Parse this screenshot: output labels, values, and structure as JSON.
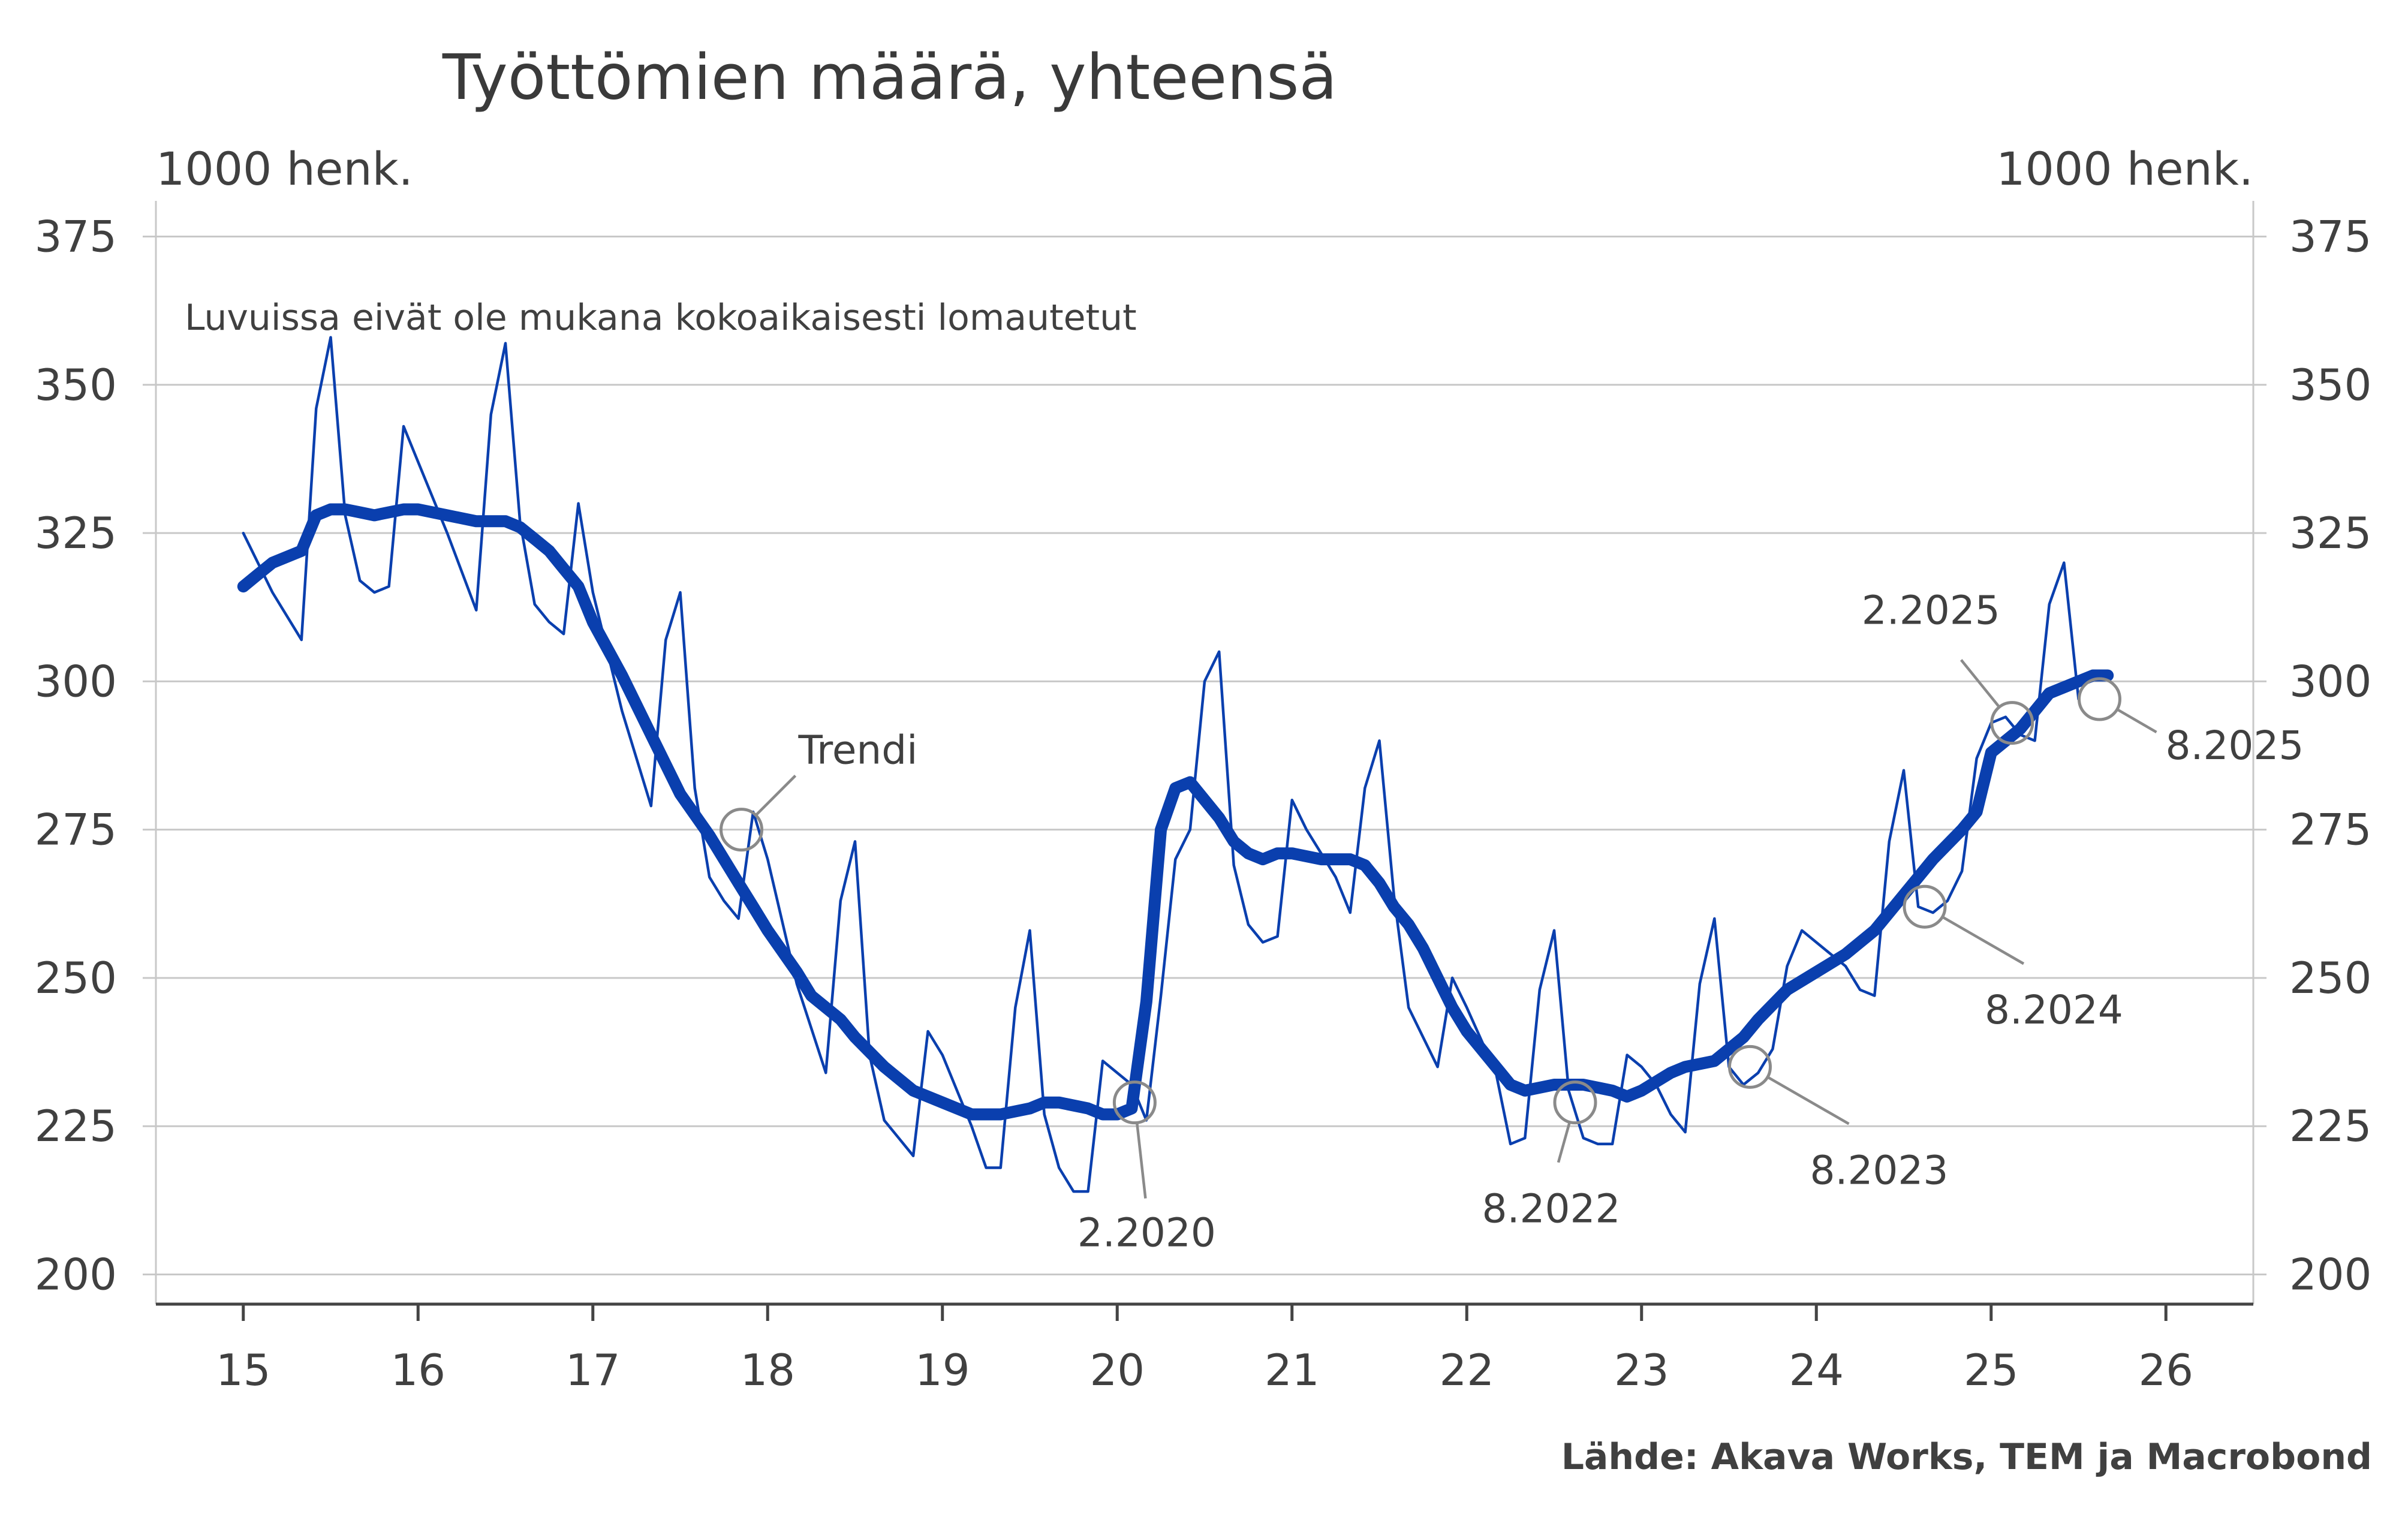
{
  "chart_data": {
    "type": "line",
    "title": "Työttömien määrä, yhteensä",
    "ylabel_left": "1000 henk.",
    "ylabel_right": "1000 henk.",
    "note": "Luvuissa eivät ole mukana kokoaikaisesti lomautetut",
    "source": "Lähde: Akava Works, TEM ja Macrobond",
    "ylim": [
      195,
      380
    ],
    "yticks": [
      200,
      225,
      250,
      275,
      300,
      325,
      350,
      375
    ],
    "xlim": [
      2014.5,
      2026.5
    ],
    "xtick_labels": [
      "15",
      "16",
      "17",
      "18",
      "19",
      "20",
      "21",
      "22",
      "23",
      "24",
      "25",
      "26"
    ],
    "grid": "horizontal",
    "colors": {
      "series": "#0a3fae",
      "grid": "#c8c8c8",
      "axis": "#444444",
      "marker": "#8a8a8a"
    },
    "series": [
      {
        "line": "thin",
        "points": [
          [
            2015.0,
            325
          ],
          [
            2015.167,
            315
          ],
          [
            2015.333,
            307
          ],
          [
            2015.417,
            346
          ],
          [
            2015.5,
            358
          ],
          [
            2015.583,
            328
          ],
          [
            2015.667,
            317
          ],
          [
            2015.75,
            315
          ],
          [
            2015.833,
            316
          ],
          [
            2015.917,
            343
          ],
          [
            2016.0,
            337
          ],
          [
            2016.167,
            325
          ],
          [
            2016.333,
            312
          ],
          [
            2016.417,
            345
          ],
          [
            2016.5,
            357
          ],
          [
            2016.583,
            327
          ],
          [
            2016.667,
            313
          ],
          [
            2016.75,
            310
          ],
          [
            2016.833,
            308
          ],
          [
            2016.917,
            330
          ],
          [
            2017.0,
            315
          ],
          [
            2017.167,
            295
          ],
          [
            2017.333,
            279
          ],
          [
            2017.417,
            307
          ],
          [
            2017.5,
            315
          ],
          [
            2017.583,
            282
          ],
          [
            2017.667,
            267
          ],
          [
            2017.75,
            263
          ],
          [
            2017.833,
            260
          ],
          [
            2017.917,
            278
          ],
          [
            2018.0,
            270
          ],
          [
            2018.167,
            249
          ],
          [
            2018.333,
            234
          ],
          [
            2018.417,
            263
          ],
          [
            2018.5,
            273
          ],
          [
            2018.583,
            237
          ],
          [
            2018.667,
            226
          ],
          [
            2018.75,
            223
          ],
          [
            2018.833,
            220
          ],
          [
            2018.917,
            241
          ],
          [
            2019.0,
            237
          ],
          [
            2019.167,
            225
          ],
          [
            2019.25,
            218
          ],
          [
            2019.333,
            218
          ],
          [
            2019.417,
            245
          ],
          [
            2019.5,
            258
          ],
          [
            2019.583,
            227
          ],
          [
            2019.667,
            218
          ],
          [
            2019.75,
            214
          ],
          [
            2019.833,
            214
          ],
          [
            2019.917,
            236
          ],
          [
            2020.0,
            234
          ],
          [
            2020.083,
            232
          ],
          [
            2020.167,
            226
          ],
          [
            2020.25,
            247
          ],
          [
            2020.333,
            270
          ],
          [
            2020.417,
            275
          ],
          [
            2020.5,
            300
          ],
          [
            2020.583,
            305
          ],
          [
            2020.667,
            269
          ],
          [
            2020.75,
            259
          ],
          [
            2020.833,
            256
          ],
          [
            2020.917,
            257
          ],
          [
            2021.0,
            280
          ],
          [
            2021.083,
            275
          ],
          [
            2021.167,
            271
          ],
          [
            2021.25,
            267
          ],
          [
            2021.333,
            261
          ],
          [
            2021.417,
            282
          ],
          [
            2021.5,
            290
          ],
          [
            2021.583,
            264
          ],
          [
            2021.667,
            245
          ],
          [
            2021.75,
            240
          ],
          [
            2021.833,
            235
          ],
          [
            2021.917,
            250
          ],
          [
            2022.0,
            245
          ],
          [
            2022.167,
            234
          ],
          [
            2022.25,
            222
          ],
          [
            2022.333,
            223
          ],
          [
            2022.417,
            248
          ],
          [
            2022.5,
            258
          ],
          [
            2022.583,
            231
          ],
          [
            2022.667,
            223
          ],
          [
            2022.75,
            222
          ],
          [
            2022.833,
            222
          ],
          [
            2022.917,
            237
          ],
          [
            2023.0,
            235
          ],
          [
            2023.083,
            232
          ],
          [
            2023.167,
            227
          ],
          [
            2023.25,
            224
          ],
          [
            2023.333,
            249
          ],
          [
            2023.417,
            260
          ],
          [
            2023.5,
            235
          ],
          [
            2023.583,
            232
          ],
          [
            2023.667,
            234
          ],
          [
            2023.75,
            238
          ],
          [
            2023.833,
            252
          ],
          [
            2023.917,
            258
          ],
          [
            2024.0,
            256
          ],
          [
            2024.083,
            254
          ],
          [
            2024.167,
            252
          ],
          [
            2024.25,
            248
          ],
          [
            2024.333,
            247
          ],
          [
            2024.417,
            273
          ],
          [
            2024.5,
            285
          ],
          [
            2024.583,
            262
          ],
          [
            2024.667,
            261
          ],
          [
            2024.75,
            263
          ],
          [
            2024.833,
            268
          ],
          [
            2024.917,
            287
          ],
          [
            2025.0,
            293
          ],
          [
            2025.083,
            294
          ],
          [
            2025.167,
            291
          ],
          [
            2025.25,
            290
          ],
          [
            2025.333,
            313
          ],
          [
            2025.417,
            320
          ],
          [
            2025.5,
            297
          ]
        ]
      },
      {
        "name": "Trendi",
        "line": "thick",
        "points": [
          [
            2015.0,
            316
          ],
          [
            2015.083,
            318
          ],
          [
            2015.167,
            320
          ],
          [
            2015.25,
            321
          ],
          [
            2015.333,
            322
          ],
          [
            2015.417,
            328
          ],
          [
            2015.5,
            329
          ],
          [
            2015.583,
            329
          ],
          [
            2015.667,
            328.5
          ],
          [
            2015.75,
            328
          ],
          [
            2015.833,
            328.5
          ],
          [
            2015.917,
            329
          ],
          [
            2016.0,
            329
          ],
          [
            2016.167,
            328
          ],
          [
            2016.333,
            327
          ],
          [
            2016.5,
            327
          ],
          [
            2016.583,
            326
          ],
          [
            2016.667,
            324
          ],
          [
            2016.75,
            322
          ],
          [
            2016.833,
            319
          ],
          [
            2016.917,
            316
          ],
          [
            2017.0,
            310
          ],
          [
            2017.167,
            301
          ],
          [
            2017.333,
            291
          ],
          [
            2017.5,
            281
          ],
          [
            2017.667,
            274
          ],
          [
            2017.75,
            270
          ],
          [
            2017.833,
            266
          ],
          [
            2017.917,
            262
          ],
          [
            2018.0,
            258
          ],
          [
            2018.167,
            251
          ],
          [
            2018.25,
            247
          ],
          [
            2018.417,
            243
          ],
          [
            2018.5,
            240
          ],
          [
            2018.667,
            235
          ],
          [
            2018.833,
            231
          ],
          [
            2019.0,
            229
          ],
          [
            2019.167,
            227
          ],
          [
            2019.333,
            227
          ],
          [
            2019.5,
            228
          ],
          [
            2019.583,
            229
          ],
          [
            2019.667,
            229
          ],
          [
            2019.833,
            228
          ],
          [
            2019.917,
            227
          ],
          [
            2020.0,
            227
          ],
          [
            2020.083,
            228
          ],
          [
            2020.167,
            246
          ],
          [
            2020.25,
            275
          ],
          [
            2020.333,
            282
          ],
          [
            2020.417,
            283
          ],
          [
            2020.5,
            280
          ],
          [
            2020.583,
            277
          ],
          [
            2020.667,
            273
          ],
          [
            2020.75,
            271
          ],
          [
            2020.833,
            270
          ],
          [
            2020.917,
            271
          ],
          [
            2021.0,
            271
          ],
          [
            2021.167,
            270
          ],
          [
            2021.333,
            270
          ],
          [
            2021.417,
            269
          ],
          [
            2021.5,
            266
          ],
          [
            2021.583,
            262
          ],
          [
            2021.667,
            259
          ],
          [
            2021.75,
            255
          ],
          [
            2021.833,
            250
          ],
          [
            2021.917,
            245
          ],
          [
            2022.0,
            241
          ],
          [
            2022.167,
            235
          ],
          [
            2022.25,
            232
          ],
          [
            2022.333,
            231
          ],
          [
            2022.5,
            232
          ],
          [
            2022.667,
            232
          ],
          [
            2022.833,
            231
          ],
          [
            2022.917,
            230
          ],
          [
            2023.0,
            231
          ],
          [
            2023.167,
            234
          ],
          [
            2023.25,
            235
          ],
          [
            2023.417,
            236
          ],
          [
            2023.5,
            238
          ],
          [
            2023.583,
            240
          ],
          [
            2023.667,
            243
          ],
          [
            2023.833,
            248
          ],
          [
            2024.0,
            251
          ],
          [
            2024.167,
            254
          ],
          [
            2024.333,
            258
          ],
          [
            2024.5,
            264
          ],
          [
            2024.667,
            270
          ],
          [
            2024.833,
            275
          ],
          [
            2024.917,
            278
          ],
          [
            2025.0,
            288
          ],
          [
            2025.167,
            292
          ],
          [
            2025.25,
            295
          ],
          [
            2025.333,
            298
          ],
          [
            2025.417,
            299
          ],
          [
            2025.583,
            301
          ],
          [
            2025.667,
            301
          ]
        ]
      }
    ],
    "annotations": [
      {
        "label": "Trendi",
        "point": [
          2017.85,
          275
        ],
        "anchor": "label-above-right"
      },
      {
        "label": "2.2020",
        "point": [
          2020.1,
          229
        ],
        "anchor": "label-below"
      },
      {
        "label": "8.2022",
        "point": [
          2022.62,
          229
        ],
        "anchor": "label-below-left"
      },
      {
        "label": "8.2023",
        "point": [
          2023.62,
          235
        ],
        "anchor": "label-below-right"
      },
      {
        "label": "8.2024",
        "point": [
          2024.62,
          262
        ],
        "anchor": "label-below-right"
      },
      {
        "label": "2.2025",
        "point": [
          2025.12,
          293
        ],
        "anchor": "label-above-left"
      },
      {
        "label": "8.2025",
        "point": [
          2025.62,
          297
        ],
        "anchor": "label-right"
      }
    ]
  }
}
